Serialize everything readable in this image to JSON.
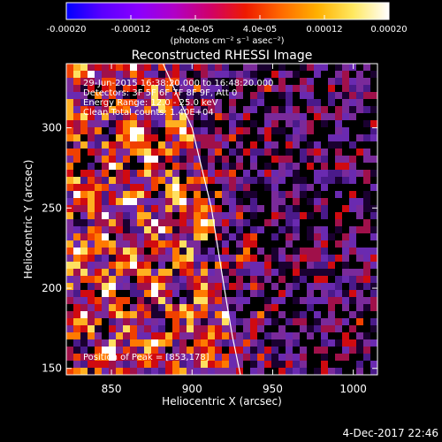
{
  "colorbar": {
    "ticks": [
      {
        "value": -0.0002,
        "label": "-0.00020"
      },
      {
        "value": -0.00012,
        "label": "-0.00012"
      },
      {
        "value": -4e-05,
        "label": "-4.0e-05"
      },
      {
        "value": 4e-05,
        "label": "4.0e-05"
      },
      {
        "value": 0.00012,
        "label": "0.00012"
      },
      {
        "value": 0.0002,
        "label": "0.00020"
      }
    ],
    "unit_label": "(photons cm⁻² s⁻¹ asec⁻²)",
    "range": [
      -0.0002,
      0.0002
    ],
    "colors": [
      "#0000ff",
      "#5a00ff",
      "#8a00ff",
      "#b000c8",
      "#d0006a",
      "#ee1a00",
      "#ff6a00",
      "#ffb000",
      "#ffe860",
      "#ffffff"
    ]
  },
  "chart_data": {
    "type": "heatmap",
    "title": "Reconstructed RHESSI Image",
    "xlabel": "Heliocentric X (arcsec)",
    "ylabel": "Heliocentric Y (arcsec)",
    "xlim": [
      822,
      1015
    ],
    "ylim": [
      146,
      340
    ],
    "x_ticks": [
      850,
      900,
      950,
      1000
    ],
    "y_ticks": [
      150,
      200,
      250,
      300
    ],
    "annotations": [
      "29-Jun-2015 16:38:20.000 to 16:48:20.000",
      "Detectors: 3F 5F 6F 7F 8F 9F, Att 0",
      "Energy Range: 12.0 - 25.0 keV",
      "Clean     Total counts: 1.40E+04"
    ],
    "peak_label": "Position of Peak = [853,178]",
    "peak": [
      853,
      178
    ],
    "limb_points": [
      [
        882,
        340
      ],
      [
        900,
        300
      ],
      [
        912,
        250
      ],
      [
        920,
        200
      ],
      [
        925,
        170
      ],
      [
        930,
        146
      ]
    ],
    "grid": false,
    "legend": "none"
  },
  "footer": {
    "date": "4-Dec-2017 22:46"
  }
}
